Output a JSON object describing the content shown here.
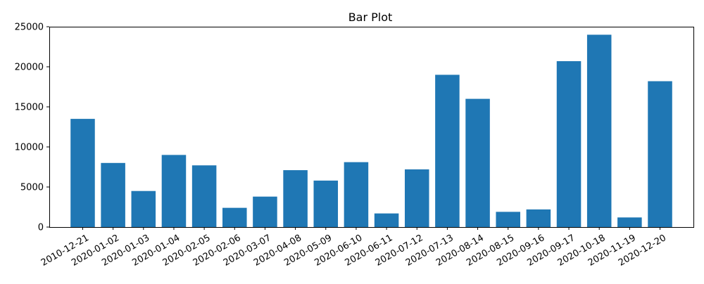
{
  "chart_data": {
    "type": "bar",
    "title": "Bar Plot",
    "xlabel": "",
    "ylabel": "",
    "categories": [
      "2010-12-21",
      "2020-01-02",
      "2020-01-03",
      "2020-01-04",
      "2020-02-05",
      "2020-02-06",
      "2020-03-07",
      "2020-04-08",
      "2020-05-09",
      "2020-06-10",
      "2020-06-11",
      "2020-07-12",
      "2020-07-13",
      "2020-08-14",
      "2020-08-15",
      "2020-09-16",
      "2020-09-17",
      "2020-10-18",
      "2020-11-19",
      "2020-12-20"
    ],
    "values": [
      13500,
      8000,
      4500,
      9000,
      7700,
      2400,
      3800,
      7100,
      5800,
      8100,
      1700,
      7200,
      19000,
      16000,
      1900,
      2200,
      20700,
      24000,
      1200,
      18200
    ],
    "ylim": [
      0,
      25000
    ],
    "yticks": [
      0,
      5000,
      10000,
      15000,
      20000,
      25000
    ],
    "grid": false,
    "bar_color": "#1f77b4"
  }
}
